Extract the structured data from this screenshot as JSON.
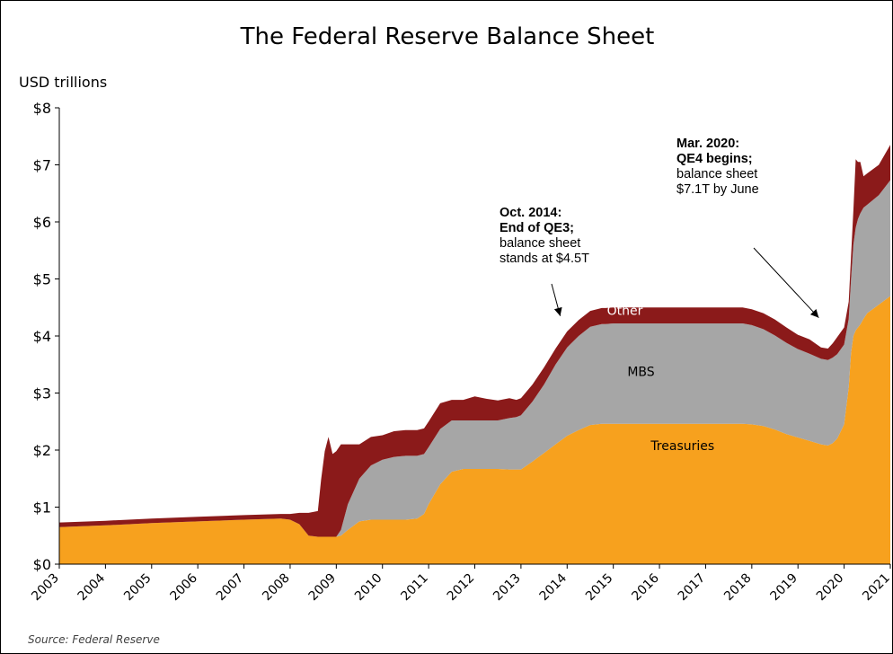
{
  "chart_data": {
    "type": "area",
    "stacked": true,
    "title": "The Federal Reserve Balance Sheet",
    "ylabel": "USD trillions",
    "ylim": [
      0,
      8
    ],
    "xlim": [
      2003,
      2021
    ],
    "yticks": [
      {
        "value": 0,
        "label": "$0"
      },
      {
        "value": 1,
        "label": "$1"
      },
      {
        "value": 2,
        "label": "$2"
      },
      {
        "value": 3,
        "label": "$3"
      },
      {
        "value": 4,
        "label": "$4"
      },
      {
        "value": 5,
        "label": "$5"
      },
      {
        "value": 6,
        "label": "$6"
      },
      {
        "value": 7,
        "label": "$7"
      },
      {
        "value": 8,
        "label": "$8"
      }
    ],
    "xticks": [
      "2003",
      "2004",
      "2005",
      "2006",
      "2007",
      "2008",
      "2009",
      "2010",
      "2011",
      "2012",
      "2013",
      "2014",
      "2015",
      "2016",
      "2017",
      "2018",
      "2019",
      "2020",
      "2021"
    ],
    "grid": false,
    "colors": {
      "Treasuries": "#F7A11E",
      "MBS": "#A6A6A6",
      "Other": "#8B1A1A"
    },
    "x": [
      2003.0,
      2004.0,
      2005.0,
      2006.0,
      2007.0,
      2007.8,
      2008.0,
      2008.2,
      2008.4,
      2008.6,
      2008.67,
      2008.75,
      2008.83,
      2008.92,
      2009.0,
      2009.1,
      2009.25,
      2009.5,
      2009.75,
      2010.0,
      2010.25,
      2010.5,
      2010.75,
      2010.9,
      2011.0,
      2011.25,
      2011.5,
      2011.75,
      2012.0,
      2012.25,
      2012.5,
      2012.75,
      2012.9,
      2013.0,
      2013.25,
      2013.5,
      2013.75,
      2014.0,
      2014.25,
      2014.5,
      2014.75,
      2014.83,
      2015.0,
      2015.5,
      2016.0,
      2016.5,
      2017.0,
      2017.5,
      2017.8,
      2018.0,
      2018.25,
      2018.5,
      2018.75,
      2019.0,
      2019.25,
      2019.5,
      2019.65,
      2019.75,
      2019.85,
      2020.0,
      2020.1,
      2020.15,
      2020.2,
      2020.25,
      2020.3,
      2020.35,
      2020.42,
      2020.5,
      2020.75,
      2021.0
    ],
    "series": [
      {
        "name": "Treasuries",
        "values": [
          0.65,
          0.68,
          0.72,
          0.75,
          0.78,
          0.8,
          0.78,
          0.7,
          0.5,
          0.48,
          0.48,
          0.48,
          0.48,
          0.48,
          0.48,
          0.5,
          0.6,
          0.75,
          0.78,
          0.78,
          0.78,
          0.78,
          0.8,
          0.88,
          1.05,
          1.4,
          1.62,
          1.67,
          1.67,
          1.67,
          1.67,
          1.66,
          1.66,
          1.66,
          1.8,
          1.95,
          2.1,
          2.25,
          2.35,
          2.44,
          2.46,
          2.46,
          2.46,
          2.46,
          2.46,
          2.46,
          2.46,
          2.46,
          2.46,
          2.45,
          2.42,
          2.36,
          2.28,
          2.22,
          2.16,
          2.1,
          2.08,
          2.12,
          2.2,
          2.45,
          3.1,
          3.7,
          4.0,
          4.1,
          4.15,
          4.2,
          4.3,
          4.4,
          4.55,
          4.7
        ]
      },
      {
        "name": "MBS",
        "values": [
          0.0,
          0.0,
          0.0,
          0.0,
          0.0,
          0.0,
          0.0,
          0.0,
          0.0,
          0.0,
          0.0,
          0.0,
          0.0,
          0.0,
          0.0,
          0.1,
          0.45,
          0.75,
          0.95,
          1.05,
          1.1,
          1.12,
          1.1,
          1.05,
          1.0,
          0.97,
          0.9,
          0.85,
          0.85,
          0.85,
          0.85,
          0.9,
          0.92,
          0.95,
          1.05,
          1.2,
          1.4,
          1.55,
          1.65,
          1.72,
          1.75,
          1.75,
          1.76,
          1.76,
          1.76,
          1.76,
          1.76,
          1.76,
          1.76,
          1.74,
          1.7,
          1.65,
          1.6,
          1.55,
          1.53,
          1.5,
          1.5,
          1.5,
          1.48,
          1.4,
          1.2,
          1.3,
          1.6,
          1.8,
          1.9,
          1.95,
          1.95,
          1.9,
          1.92,
          2.03
        ]
      },
      {
        "name": "Other",
        "values": [
          0.08,
          0.08,
          0.08,
          0.08,
          0.08,
          0.08,
          0.1,
          0.2,
          0.4,
          0.45,
          1.0,
          1.5,
          1.75,
          1.45,
          1.5,
          1.5,
          1.05,
          0.6,
          0.5,
          0.43,
          0.45,
          0.45,
          0.45,
          0.45,
          0.45,
          0.45,
          0.36,
          0.36,
          0.42,
          0.38,
          0.35,
          0.35,
          0.3,
          0.3,
          0.3,
          0.3,
          0.28,
          0.28,
          0.28,
          0.28,
          0.28,
          0.28,
          0.28,
          0.28,
          0.28,
          0.28,
          0.28,
          0.28,
          0.28,
          0.28,
          0.28,
          0.28,
          0.27,
          0.25,
          0.25,
          0.2,
          0.2,
          0.25,
          0.3,
          0.3,
          0.3,
          0.4,
          0.6,
          1.2,
          1.0,
          0.9,
          0.55,
          0.55,
          0.53,
          0.62
        ]
      }
    ],
    "series_labels": [
      {
        "series": "Treasuries",
        "text": "Treasuries",
        "x": 2016.5,
        "y": 2.0,
        "color": "#000000"
      },
      {
        "series": "MBS",
        "text": "MBS",
        "x": 2015.6,
        "y": 3.3,
        "color": "#000000"
      },
      {
        "series": "Other",
        "text": "Other",
        "x": 2015.25,
        "y": 4.37,
        "color": "#ffffff"
      }
    ],
    "annotations": [
      {
        "bold_lines": [
          "Oct. 2014:",
          "End of QE3;"
        ],
        "lines": [
          "balance sheet",
          "stands at $4.5T"
        ],
        "target_x": 2013.85,
        "target_y": 4.35
      },
      {
        "bold_lines": [
          "Mar. 2020:",
          "QE4 begins;"
        ],
        "lines": [
          "balance sheet",
          "$7.1T by June"
        ],
        "target_x": 2019.45,
        "target_y": 4.32
      }
    ],
    "source": "Source: Federal Reserve"
  }
}
